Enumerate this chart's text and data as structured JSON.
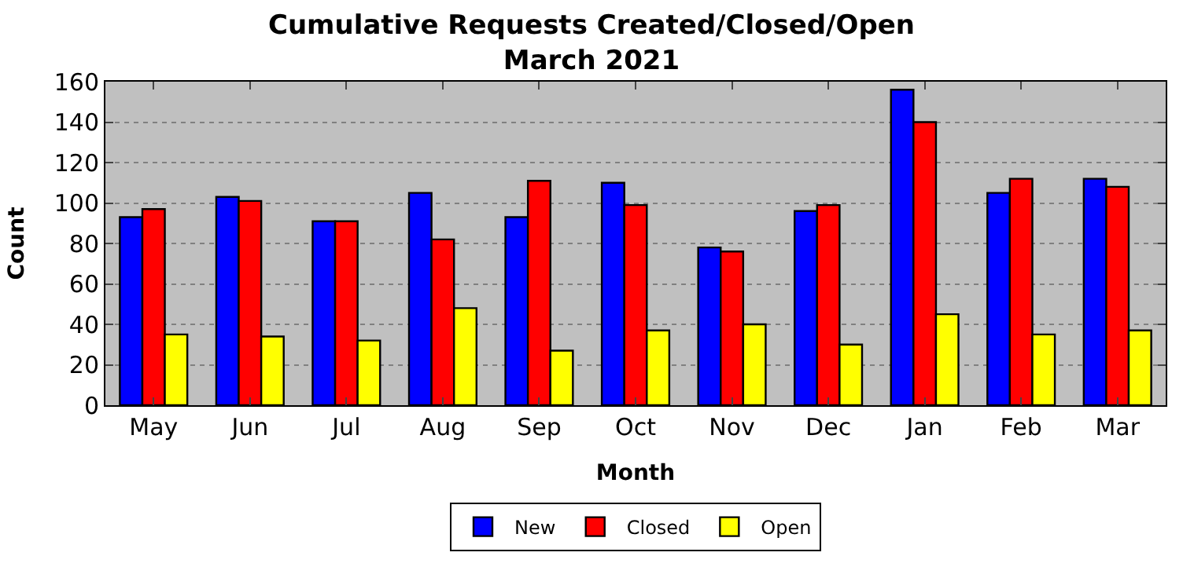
{
  "chart_data": {
    "type": "bar",
    "title": "Cumulative Requests Created/Closed/Open\nMarch 2021",
    "xlabel": "Month",
    "ylabel": "Count",
    "categories": [
      "May",
      "Jun",
      "Jul",
      "Aug",
      "Sep",
      "Oct",
      "Nov",
      "Dec",
      "Jan",
      "Feb",
      "Mar"
    ],
    "series": [
      {
        "name": "New",
        "color": "#0000ff",
        "values": [
          93,
          103,
          91,
          105,
          93,
          110,
          78,
          96,
          156,
          105,
          112
        ]
      },
      {
        "name": "Closed",
        "color": "#ff0000",
        "values": [
          97,
          101,
          91,
          82,
          111,
          99,
          76,
          99,
          140,
          112,
          108
        ]
      },
      {
        "name": "Open",
        "color": "#ffff00",
        "values": [
          35,
          34,
          32,
          48,
          27,
          37,
          40,
          30,
          45,
          35,
          37
        ]
      }
    ],
    "ylim": [
      0,
      160
    ],
    "yticks": [
      0,
      20,
      40,
      60,
      80,
      100,
      120,
      140,
      160
    ],
    "grid": "y",
    "legend": "bottom"
  }
}
